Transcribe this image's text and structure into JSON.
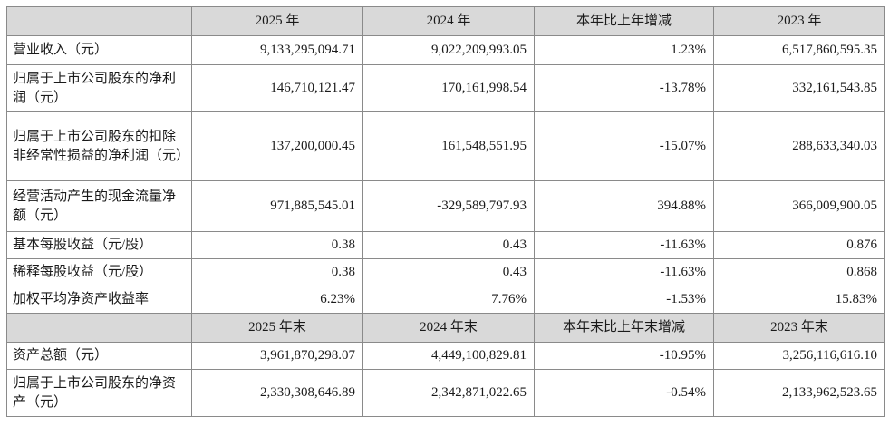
{
  "header1": [
    "",
    "2025 年",
    "2024 年",
    "本年比上年增减",
    "2023 年"
  ],
  "rows1": [
    {
      "label": "营业收入（元）",
      "v1": "9,133,295,094.71",
      "v2": "9,022,209,993.05",
      "v3": "1.23%",
      "v4": "6,517,860,595.35"
    },
    {
      "label": "归属于上市公司股东的净利润（元）",
      "v1": "146,710,121.47",
      "v2": "170,161,998.54",
      "v3": "-13.78%",
      "v4": "332,161,543.85"
    },
    {
      "label": "归属于上市公司股东的扣除非经常性损益的净利润（元）",
      "v1": "137,200,000.45",
      "v2": "161,548,551.95",
      "v3": "-15.07%",
      "v4": "288,633,340.03"
    },
    {
      "label": "经营活动产生的现金流量净额（元）",
      "v1": "971,885,545.01",
      "v2": "-329,589,797.93",
      "v3": "394.88%",
      "v4": "366,009,900.05"
    },
    {
      "label": "基本每股收益（元/股）",
      "v1": "0.38",
      "v2": "0.43",
      "v3": "-11.63%",
      "v4": "0.876"
    },
    {
      "label": "稀释每股收益（元/股）",
      "v1": "0.38",
      "v2": "0.43",
      "v3": "-11.63%",
      "v4": "0.868"
    },
    {
      "label": "加权平均净资产收益率",
      "v1": "6.23%",
      "v2": "7.76%",
      "v3": "-1.53%",
      "v4": "15.83%"
    }
  ],
  "header2": [
    "",
    "2025 年末",
    "2024 年末",
    "本年末比上年末增减",
    "2023 年末"
  ],
  "rows2": [
    {
      "label": "资产总额（元）",
      "v1": "3,961,870,298.07",
      "v2": "4,449,100,829.81",
      "v3": "-10.95%",
      "v4": "3,256,116,616.10"
    },
    {
      "label": "归属于上市公司股东的净资产（元）",
      "v1": "2,330,308,646.89",
      "v2": "2,342,871,022.65",
      "v3": "-0.54%",
      "v4": "2,133,962,523.65"
    }
  ]
}
